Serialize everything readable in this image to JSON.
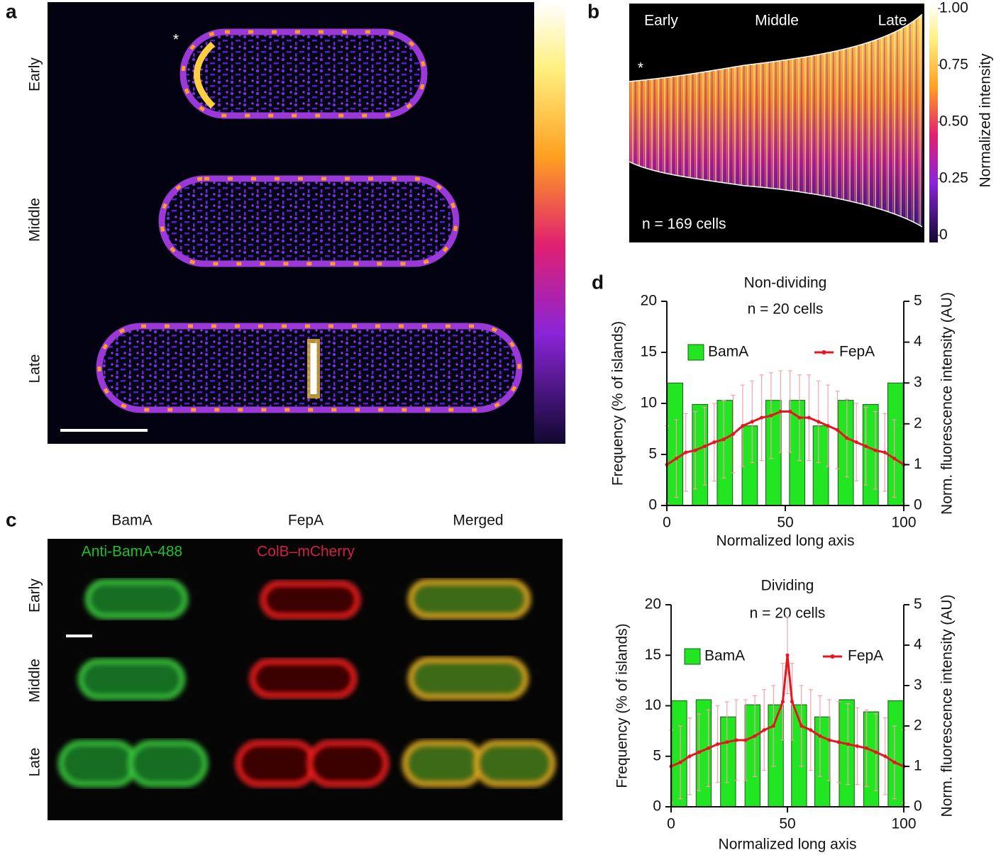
{
  "panel_a": {
    "label": "a",
    "asterisk": "*",
    "rows": [
      "Early",
      "Middle",
      "Late"
    ]
  },
  "panel_b": {
    "label": "b",
    "asterisk": "*",
    "stages": [
      "Early",
      "Middle",
      "Late"
    ],
    "annotation": "n = 169 cells",
    "colorbar": {
      "label": "Normalized intensity",
      "lim": [
        0,
        1
      ],
      "ticks": [
        {
          "value": 1,
          "label": "1.00"
        },
        0.75,
        {
          "value": 0.5,
          "label": "0.50"
        },
        0.25,
        0
      ]
    }
  },
  "panel_c": {
    "label": "c",
    "columns": [
      "BamA",
      "FepA",
      "Merged"
    ],
    "channels": [
      "Anti-BamA-488",
      "ColB–mCherry"
    ],
    "rows": [
      "Early",
      "Middle",
      "Late"
    ]
  },
  "panel_d": {
    "label": "d"
  },
  "chart_data": [
    {
      "type": "combo",
      "title": "Non-dividing",
      "subtitle": "n = 20 cells",
      "x_label": "Normalized long axis",
      "y_label": "Frequency (% of islands)",
      "y2_label": "Norm. fluorescence intensity (AU)",
      "xlim": [
        0,
        100
      ],
      "xticks": [
        0,
        50,
        100
      ],
      "ylim": [
        0,
        20
      ],
      "yticks": [
        0,
        5,
        10,
        15,
        20
      ],
      "y2lim": [
        0,
        5
      ],
      "y2ticks": [
        0,
        1,
        2,
        3,
        4,
        5
      ],
      "series": [
        {
          "name": "BamA",
          "type": "bar",
          "color": "#22e622",
          "x": [
            3.5,
            14,
            24.5,
            35,
            45,
            55,
            65,
            75.5,
            86,
            96.5
          ],
          "values": [
            12,
            9.9,
            10.3,
            7.8,
            10.3,
            10.3,
            7.8,
            10.3,
            9.9,
            12
          ]
        },
        {
          "name": "FepA",
          "type": "line",
          "axis": "y2",
          "color": "#e8141e",
          "error_color": "#f4a3a6",
          "x": [
            0,
            4,
            8,
            12,
            16,
            20,
            24,
            28,
            32,
            36,
            40,
            44,
            48,
            52,
            56,
            60,
            64,
            68,
            72,
            76,
            80,
            84,
            88,
            92,
            96,
            100
          ],
          "values": [
            1.0,
            1.15,
            1.3,
            1.35,
            1.45,
            1.55,
            1.62,
            1.75,
            1.95,
            2.05,
            2.15,
            2.2,
            2.3,
            2.3,
            2.15,
            2.15,
            2.05,
            1.95,
            1.85,
            1.65,
            1.55,
            1.45,
            1.35,
            1.3,
            1.15,
            1.0
          ],
          "errors": [
            0.95,
            0.95,
            0.95,
            0.95,
            0.95,
            0.95,
            0.95,
            0.95,
            1.0,
            1.0,
            1.05,
            1.05,
            1.0,
            1.0,
            1.05,
            1.05,
            1.0,
            1.0,
            0.95,
            0.95,
            0.95,
            0.95,
            0.95,
            0.95,
            0.95,
            0.95
          ]
        }
      ]
    },
    {
      "type": "combo",
      "title": "Dividing",
      "subtitle": "n = 20 cells",
      "x_label": "Normalized long axis",
      "y_label": "Frequency (% of islands)",
      "y2_label": "Norm. fluorescence intensity (AU)",
      "xlim": [
        0,
        100
      ],
      "xticks": [
        0,
        50,
        100
      ],
      "ylim": [
        0,
        20
      ],
      "yticks": [
        0,
        5,
        10,
        15,
        20
      ],
      "y2lim": [
        0,
        5
      ],
      "y2ticks": [
        0,
        1,
        2,
        3,
        4,
        5
      ],
      "series": [
        {
          "name": "BamA",
          "type": "bar",
          "color": "#22e622",
          "x": [
            3.5,
            14,
            24.5,
            35,
            45,
            55,
            65,
            75.5,
            86,
            96.5
          ],
          "values": [
            10.5,
            10.6,
            8.9,
            10.1,
            10.1,
            10.1,
            8.9,
            10.6,
            9.4,
            10.5
          ]
        },
        {
          "name": "FepA",
          "type": "line",
          "axis": "y2",
          "color": "#e8141e",
          "error_color": "#f4a3a6",
          "x": [
            0,
            4,
            8,
            12,
            16,
            20,
            24,
            28,
            32,
            36,
            40,
            44,
            48,
            50,
            52,
            56,
            60,
            64,
            68,
            72,
            76,
            80,
            84,
            88,
            92,
            96,
            100
          ],
          "values": [
            1.0,
            1.1,
            1.25,
            1.35,
            1.45,
            1.55,
            1.6,
            1.65,
            1.65,
            1.75,
            1.9,
            2.0,
            2.6,
            3.75,
            2.6,
            2.0,
            1.9,
            1.75,
            1.65,
            1.6,
            1.55,
            1.5,
            1.45,
            1.35,
            1.25,
            1.1,
            1.0
          ],
          "errors": [
            0.9,
            0.9,
            0.95,
            0.95,
            0.95,
            0.95,
            1.0,
            1.0,
            1.0,
            1.0,
            1.0,
            1.0,
            0.95,
            0.95,
            0.95,
            1.0,
            1.0,
            1.0,
            1.0,
            1.0,
            1.0,
            0.95,
            0.95,
            0.95,
            0.95,
            0.9,
            0.9
          ]
        }
      ]
    }
  ]
}
